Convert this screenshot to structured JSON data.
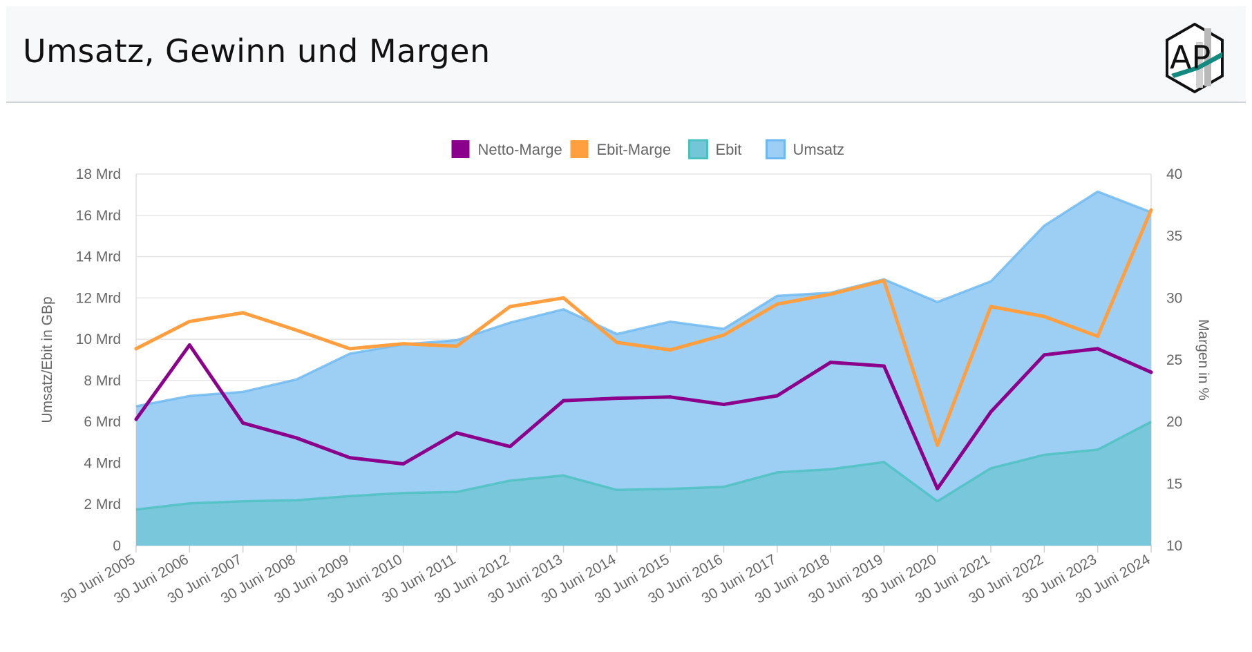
{
  "header": {
    "title": "Umsatz, Gewinn und Margen",
    "logo_text": "AP",
    "logo_icon": "ap-hexagon-logo-icon"
  },
  "chart_data": {
    "type": "line+area",
    "title": "",
    "categories": [
      "30 Juni 2005",
      "30 Juni 2006",
      "30 Juni 2007",
      "30 Juni 2008",
      "30 Juni 2009",
      "30 Juni 2010",
      "30 Juni 2011",
      "30 Juni 2012",
      "30 Juni 2013",
      "30 Juni 2014",
      "30 Juni 2015",
      "30 Juni 2016",
      "30 Juni 2017",
      "30 Juni 2018",
      "30 Juni 2019",
      "30 Juni 2020",
      "30 Juni 2021",
      "30 Juni 2022",
      "30 Juni 2023",
      "30 Juni 2024"
    ],
    "y_left": {
      "label": "Umsatz/Ebit in GBp",
      "min": 0,
      "max": 18,
      "step": 2,
      "tick_labels": [
        "0",
        "2 Mrd",
        "4 Mrd",
        "6 Mrd",
        "8 Mrd",
        "10 Mrd",
        "12 Mrd",
        "14 Mrd",
        "16 Mrd",
        "18 Mrd"
      ]
    },
    "y_right": {
      "label": "Margen in %",
      "min": 10,
      "max": 40,
      "step": 5,
      "tick_labels": [
        "10",
        "15",
        "20",
        "25",
        "30",
        "35",
        "40"
      ]
    },
    "series": [
      {
        "name": "Netto-Marge",
        "type": "line",
        "axis": "right",
        "color": "#8b008b",
        "values": [
          20.2,
          26.2,
          19.9,
          18.7,
          17.1,
          16.6,
          19.1,
          18.0,
          21.7,
          21.9,
          22.0,
          21.4,
          22.1,
          24.8,
          24.5,
          14.6,
          20.8,
          25.4,
          25.9,
          24.0
        ]
      },
      {
        "name": "Ebit-Marge",
        "type": "line",
        "axis": "right",
        "color": "#ff9f40",
        "values": [
          25.9,
          28.1,
          28.8,
          27.4,
          25.9,
          26.3,
          26.1,
          29.3,
          30.0,
          26.4,
          25.8,
          27.0,
          29.5,
          30.3,
          31.4,
          18.1,
          29.3,
          28.5,
          26.9,
          37.1
        ]
      },
      {
        "name": "Ebit",
        "type": "area",
        "axis": "left",
        "color": "#4bc0c0",
        "fill": "#75c5d8",
        "values": [
          1.75,
          2.05,
          2.15,
          2.2,
          2.4,
          2.55,
          2.6,
          3.15,
          3.4,
          2.7,
          2.75,
          2.85,
          3.55,
          3.7,
          4.05,
          2.15,
          3.75,
          4.4,
          4.65,
          6.0
        ]
      },
      {
        "name": "Umsatz",
        "type": "area",
        "axis": "left",
        "color": "#6cb8f0",
        "fill": "#9dcff5",
        "values": [
          6.75,
          7.25,
          7.45,
          8.05,
          9.3,
          9.75,
          9.95,
          10.8,
          11.45,
          10.25,
          10.85,
          10.5,
          12.1,
          12.25,
          12.9,
          11.8,
          12.8,
          15.5,
          17.15,
          16.15
        ]
      }
    ],
    "legend_position": "top",
    "grid": true
  }
}
